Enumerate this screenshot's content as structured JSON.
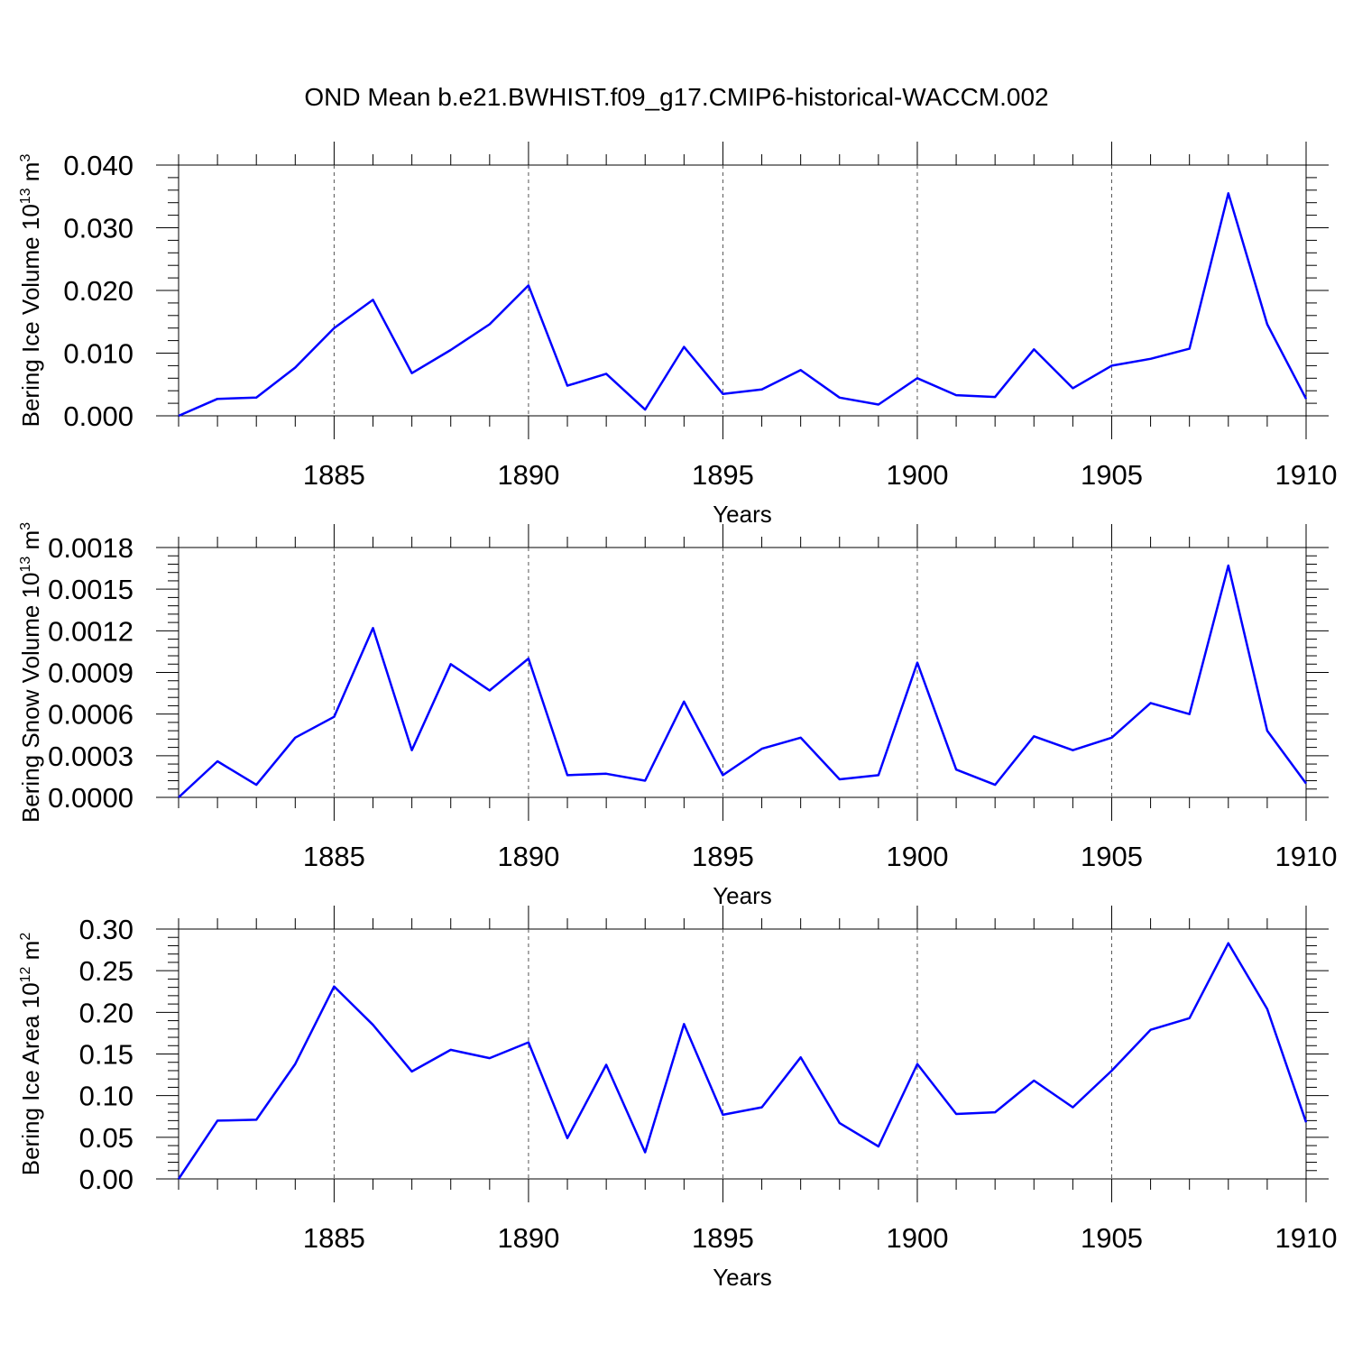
{
  "title": "OND Mean b.e21.BWHIST.f09_g17.CMIP6-historical-WACCM.002",
  "colors": {
    "line": "#0000ff",
    "axis": "#000000",
    "grid": "#555555"
  },
  "chart_data": [
    {
      "type": "line",
      "ylabel": {
        "text": "Bering Ice Volume 10",
        "exp": "13",
        "unit": " m",
        "unit_exp": "3"
      },
      "xlabel": "Years",
      "xlim": [
        1881,
        1910
      ],
      "ylim": [
        0,
        0.04
      ],
      "yticks": [
        0,
        0.01,
        0.02,
        0.03,
        0.04
      ],
      "ytick_labels": [
        "0.000",
        "0.010",
        "0.020",
        "0.030",
        "0.040"
      ],
      "xticks": [
        1885,
        1890,
        1895,
        1900,
        1905,
        1910
      ],
      "xtick_labels": [
        "1885",
        "1890",
        "1895",
        "1900",
        "1905",
        "1910"
      ],
      "grid": "vertical dashed at major x ticks",
      "series": [
        {
          "x": [
            1881,
            1882,
            1883,
            1884,
            1885,
            1886,
            1887,
            1888,
            1889,
            1890,
            1891,
            1892,
            1893,
            1894,
            1895,
            1896,
            1897,
            1898,
            1899,
            1900,
            1901,
            1902,
            1903,
            1904,
            1905,
            1906,
            1907,
            1908,
            1909,
            1910
          ],
          "values": [
            0.0,
            0.0027,
            0.0029,
            0.0077,
            0.014,
            0.0185,
            0.0068,
            0.0105,
            0.0146,
            0.0208,
            0.0048,
            0.0067,
            0.001,
            0.011,
            0.0035,
            0.0042,
            0.0073,
            0.0029,
            0.0018,
            0.006,
            0.0033,
            0.003,
            0.0106,
            0.0044,
            0.008,
            0.0091,
            0.0107,
            0.0355,
            0.0146,
            0.0027
          ]
        }
      ]
    },
    {
      "type": "line",
      "ylabel": {
        "text": "Bering Snow Volume 10",
        "exp": "13",
        "unit": " m",
        "unit_exp": "3"
      },
      "xlabel": "Years",
      "xlim": [
        1881,
        1910
      ],
      "ylim": [
        0,
        0.0018
      ],
      "yticks": [
        0,
        0.0003,
        0.0006,
        0.0009,
        0.0012,
        0.0015,
        0.0018
      ],
      "ytick_labels": [
        "0.0000",
        "0.0003",
        "0.0006",
        "0.0009",
        "0.0012",
        "0.0015",
        "0.0018"
      ],
      "xticks": [
        1885,
        1890,
        1895,
        1900,
        1905,
        1910
      ],
      "xtick_labels": [
        "1885",
        "1890",
        "1895",
        "1900",
        "1905",
        "1910"
      ],
      "grid": "vertical dashed at major x ticks",
      "series": [
        {
          "x": [
            1881,
            1882,
            1883,
            1884,
            1885,
            1886,
            1887,
            1888,
            1889,
            1890,
            1891,
            1892,
            1893,
            1894,
            1895,
            1896,
            1897,
            1898,
            1899,
            1900,
            1901,
            1902,
            1903,
            1904,
            1905,
            1906,
            1907,
            1908,
            1909,
            1910
          ],
          "values": [
            0.0,
            0.00026,
            9e-05,
            0.00043,
            0.00058,
            0.00122,
            0.00034,
            0.00096,
            0.00077,
            0.001,
            0.00016,
            0.00017,
            0.00012,
            0.00069,
            0.00016,
            0.00035,
            0.00043,
            0.00013,
            0.00016,
            0.00097,
            0.0002,
            9e-05,
            0.00044,
            0.00034,
            0.00043,
            0.00068,
            0.0006,
            0.00167,
            0.00048,
            0.0001
          ]
        }
      ]
    },
    {
      "type": "line",
      "ylabel": {
        "text": "Bering Ice Area 10",
        "exp": "12",
        "unit": " m",
        "unit_exp": "2"
      },
      "xlabel": "Years",
      "xlim": [
        1881,
        1910
      ],
      "ylim": [
        0,
        0.3
      ],
      "yticks": [
        0,
        0.05,
        0.1,
        0.15,
        0.2,
        0.25,
        0.3
      ],
      "ytick_labels": [
        "0.00",
        "0.05",
        "0.10",
        "0.15",
        "0.20",
        "0.25",
        "0.30"
      ],
      "xticks": [
        1885,
        1890,
        1895,
        1900,
        1905,
        1910
      ],
      "xtick_labels": [
        "1885",
        "1890",
        "1895",
        "1900",
        "1905",
        "1910"
      ],
      "grid": "vertical dashed at major x ticks",
      "series": [
        {
          "x": [
            1881,
            1882,
            1883,
            1884,
            1885,
            1886,
            1887,
            1888,
            1889,
            1890,
            1891,
            1892,
            1893,
            1894,
            1895,
            1896,
            1897,
            1898,
            1899,
            1900,
            1901,
            1902,
            1903,
            1904,
            1905,
            1906,
            1907,
            1908,
            1909,
            1910
          ],
          "values": [
            0.0,
            0.07,
            0.071,
            0.138,
            0.231,
            0.185,
            0.129,
            0.155,
            0.145,
            0.164,
            0.049,
            0.137,
            0.032,
            0.186,
            0.077,
            0.086,
            0.146,
            0.067,
            0.039,
            0.138,
            0.078,
            0.08,
            0.118,
            0.086,
            0.13,
            0.179,
            0.193,
            0.283,
            0.204,
            0.068
          ]
        }
      ]
    }
  ]
}
